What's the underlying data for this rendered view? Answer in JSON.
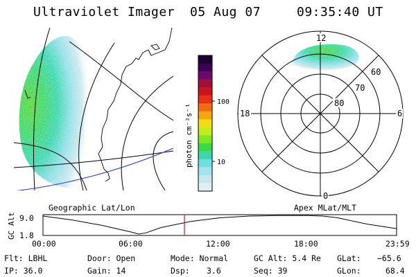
{
  "header": {
    "title": "Ultraviolet Imager",
    "date": "05 Aug 07",
    "time": "09:35:40 UT"
  },
  "geo_panel": {
    "label": "Geographic Lat/Lon"
  },
  "polar_panel": {
    "label": "Apex MLat/MLT",
    "lat_labels": [
      "60",
      "70",
      "80"
    ],
    "mlt_labels": {
      "top": "12",
      "right": "6",
      "bottom": "0",
      "left": "18"
    }
  },
  "colorbar": {
    "unit_label": "photon cm⁻²s⁻¹",
    "tick_labels": [
      "100",
      "10"
    ],
    "colors": [
      "#1a0033",
      "#3a0052",
      "#6b0a6b",
      "#a0103c",
      "#c8141e",
      "#e43218",
      "#f26b12",
      "#f8a514",
      "#f2dc18",
      "#c6ea1e",
      "#7ee62a",
      "#3ed845",
      "#3cd7a8",
      "#6fe0e0",
      "#a6e2ec",
      "#c8e6ee",
      "#e2eef2"
    ]
  },
  "orbit_plot": {
    "ylabel": "GC Alt",
    "yticks": [
      "9.0",
      "1.8"
    ],
    "xticks": [
      "00:00",
      "06:00",
      "12:00",
      "18:00",
      "23:59"
    ],
    "ymin": 1.8,
    "ymax": 9.0,
    "current_hour": 9.6,
    "series_hours": [
      0,
      2,
      4,
      6,
      6.5,
      7,
      8,
      10,
      12,
      14,
      16,
      18,
      19,
      20,
      22,
      23.99
    ],
    "series_alt": [
      9.0,
      7.4,
      5.3,
      2.6,
      1.8,
      2.3,
      4.4,
      6.8,
      8.3,
      9.0,
      9.2,
      9.2,
      9.0,
      8.3,
      5.8,
      4.0
    ]
  },
  "footer": {
    "flt": "Flt: LBHL",
    "ip": "IP: 36.0",
    "door": "Door: Open",
    "gain": "Gain: 14",
    "mode": "Mode: Normal",
    "dsp_label": "Dsp:",
    "dsp_value": "3.6",
    "gc_alt": "GC Alt: 5.4 Re",
    "seq": "Seq: 39",
    "glat_label": "GLat:",
    "glat_value": "−65.6",
    "glon_label": "GLon:",
    "glon_value": "68.4"
  }
}
